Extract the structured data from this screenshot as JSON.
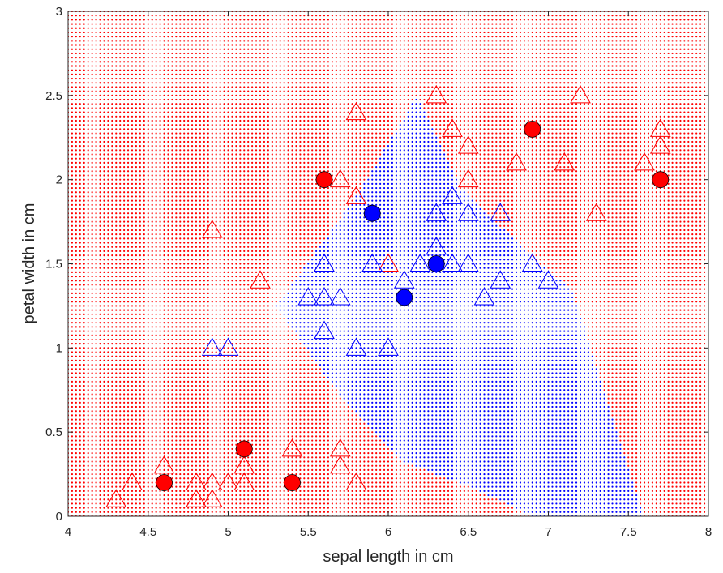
{
  "chart_data": {
    "type": "scatter",
    "xlabel": "sepal length in cm",
    "ylabel": "petal width in cm",
    "xlim": [
      4,
      8
    ],
    "ylim": [
      0,
      3
    ],
    "xticks": [
      "4",
      "4.5",
      "5",
      "5.5",
      "6",
      "6.5",
      "7",
      "7.5",
      "8"
    ],
    "yticks": [
      "0",
      "0.5",
      "1",
      "1.5",
      "2",
      "2.5",
      "3"
    ],
    "grid": false,
    "colors": {
      "red": "#ff0000",
      "blue": "#0000ff",
      "axis": "#262626"
    },
    "decision_region": {
      "background_class": "red",
      "dot_spacing_x": 0.025,
      "dot_spacing_y": 0.025,
      "blue_polygon": [
        [
          5.3,
          1.25
        ],
        [
          5.8,
          1.9
        ],
        [
          6.18,
          2.5
        ],
        [
          6.45,
          1.95
        ],
        [
          6.95,
          1.5
        ],
        [
          7.15,
          1.35
        ],
        [
          7.6,
          0.0
        ],
        [
          6.9,
          0.0
        ],
        [
          6.5,
          0.18
        ],
        [
          6.1,
          0.32
        ],
        [
          5.9,
          0.52
        ],
        [
          5.7,
          0.72
        ],
        [
          5.5,
          0.98
        ]
      ]
    },
    "series": [
      {
        "marker": "triangle",
        "color": "red",
        "points": [
          [
            4.3,
            0.1
          ],
          [
            4.4,
            0.2
          ],
          [
            4.6,
            0.3
          ],
          [
            4.8,
            0.2
          ],
          [
            4.8,
            0.1
          ],
          [
            4.9,
            0.2
          ],
          [
            4.9,
            0.1
          ],
          [
            5.0,
            0.2
          ],
          [
            5.1,
            0.2
          ],
          [
            5.1,
            0.3
          ],
          [
            5.4,
            0.4
          ],
          [
            5.7,
            0.4
          ],
          [
            5.7,
            0.3
          ],
          [
            5.8,
            0.2
          ],
          [
            4.9,
            1.7
          ],
          [
            5.2,
            1.4
          ],
          [
            5.7,
            2.0
          ],
          [
            5.8,
            2.4
          ],
          [
            5.8,
            1.9
          ],
          [
            6.0,
            1.5
          ],
          [
            6.3,
            2.5
          ],
          [
            6.4,
            2.3
          ],
          [
            6.5,
            2.2
          ],
          [
            6.5,
            2.0
          ],
          [
            6.8,
            2.1
          ],
          [
            7.1,
            2.1
          ],
          [
            7.2,
            2.5
          ],
          [
            7.3,
            1.8
          ],
          [
            7.6,
            2.1
          ],
          [
            7.7,
            2.3
          ],
          [
            7.7,
            2.2
          ]
        ]
      },
      {
        "marker": "triangle",
        "color": "blue",
        "points": [
          [
            4.9,
            1.0
          ],
          [
            5.0,
            1.0
          ],
          [
            5.5,
            1.3
          ],
          [
            5.6,
            1.5
          ],
          [
            5.6,
            1.3
          ],
          [
            5.6,
            1.1
          ],
          [
            5.7,
            1.3
          ],
          [
            5.8,
            1.0
          ],
          [
            5.9,
            1.5
          ],
          [
            6.0,
            1.0
          ],
          [
            6.1,
            1.4
          ],
          [
            6.2,
            1.5
          ],
          [
            6.3,
            1.6
          ],
          [
            6.3,
            1.8
          ],
          [
            6.4,
            1.5
          ],
          [
            6.4,
            1.9
          ],
          [
            6.5,
            1.5
          ],
          [
            6.5,
            1.8
          ],
          [
            6.6,
            1.3
          ],
          [
            6.7,
            1.8
          ],
          [
            6.7,
            1.4
          ],
          [
            6.9,
            1.5
          ],
          [
            7.0,
            1.4
          ]
        ]
      },
      {
        "marker": "circle",
        "color": "red",
        "points": [
          [
            4.6,
            0.2
          ],
          [
            5.1,
            0.4
          ],
          [
            5.4,
            0.2
          ],
          [
            5.6,
            2.0
          ],
          [
            6.9,
            2.3
          ],
          [
            7.7,
            2.0
          ]
        ]
      },
      {
        "marker": "circle",
        "color": "blue",
        "points": [
          [
            5.9,
            1.8
          ],
          [
            6.1,
            1.3
          ],
          [
            6.3,
            1.5
          ]
        ]
      }
    ]
  }
}
